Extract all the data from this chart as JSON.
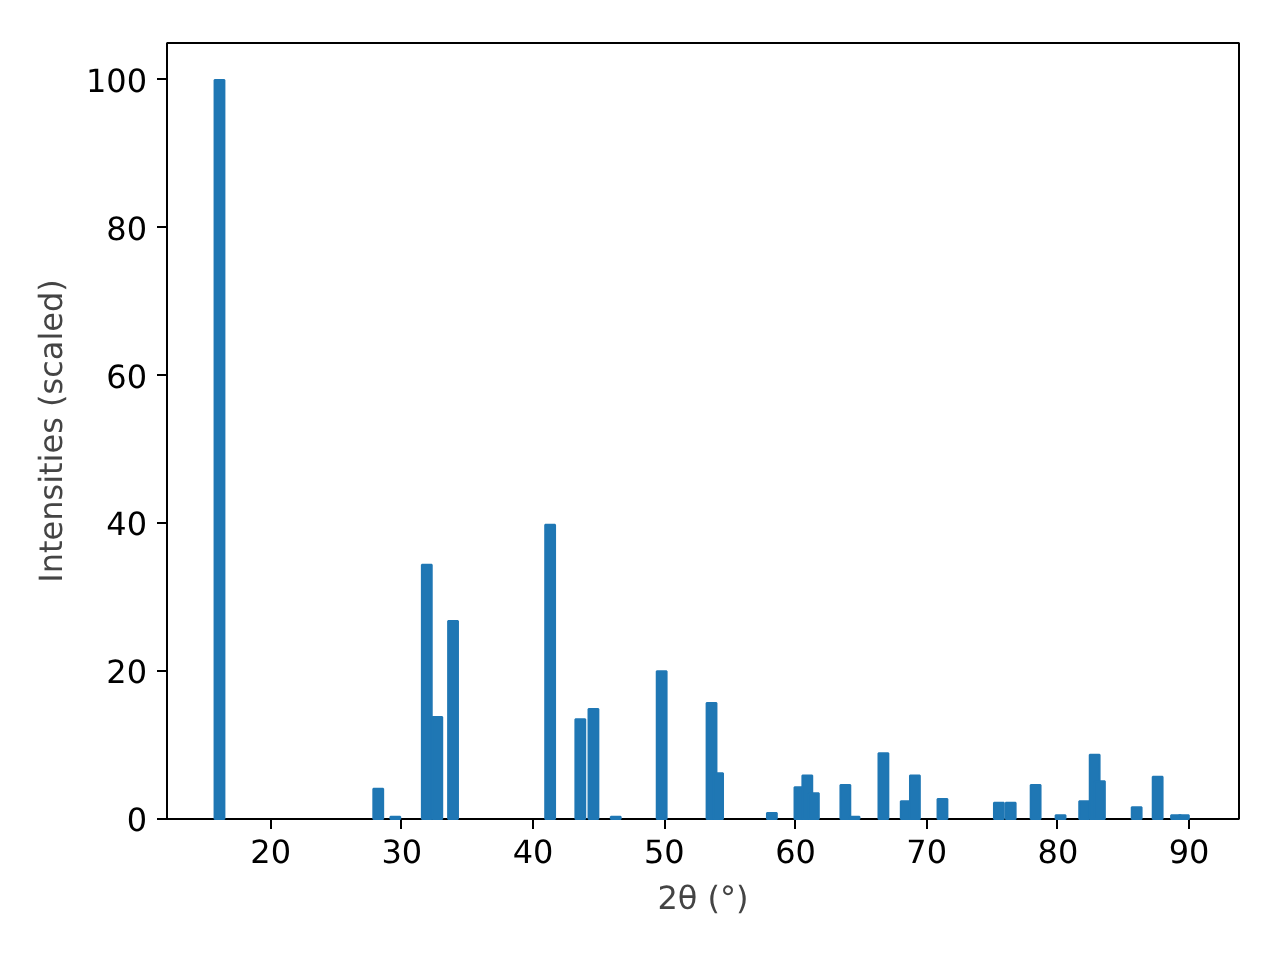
{
  "chart_data": {
    "type": "bar",
    "xlabel": "2θ (°)",
    "ylabel": "Intensities (scaled)",
    "color": "#1f77b4",
    "x": [
      16.1,
      28.2,
      29.5,
      31.9,
      32.7,
      33.9,
      41.3,
      43.6,
      44.6,
      46.3,
      49.8,
      53.6,
      54.1,
      58.2,
      60.3,
      60.9,
      61.4,
      63.8,
      64.5,
      66.7,
      68.4,
      69.1,
      71.2,
      75.5,
      76.4,
      78.3,
      80.2,
      82.0,
      82.8,
      83.2,
      86.0,
      87.6,
      89.0,
      89.6
    ],
    "values": [
      100,
      4.1,
      0.3,
      34.4,
      13.8,
      26.8,
      39.8,
      13.5,
      14.9,
      0.3,
      20.0,
      15.7,
      6.2,
      0.8,
      4.3,
      5.9,
      3.5,
      4.6,
      0.3,
      8.9,
      2.4,
      5.9,
      2.7,
      2.2,
      2.2,
      4.6,
      0.5,
      2.4,
      8.7,
      5.1,
      1.6,
      5.7,
      0.5,
      0.5
    ],
    "xlim": [
      12.1,
      93.8
    ],
    "xticks": [
      20,
      30,
      40,
      50,
      60,
      70,
      80,
      90
    ],
    "ylim": [
      0,
      105
    ],
    "yticks": [
      0,
      20,
      40,
      60,
      80,
      100
    ],
    "grid": false
  }
}
